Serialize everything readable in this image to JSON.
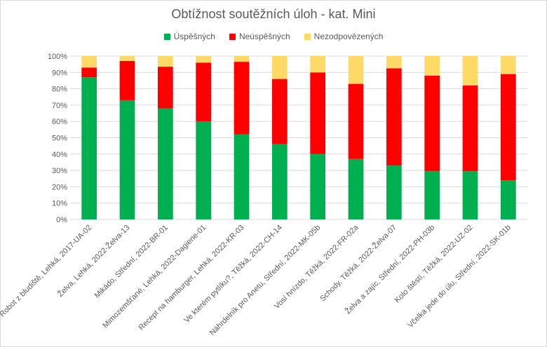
{
  "chart_data": {
    "type": "bar",
    "stacked": true,
    "title": "Obtížnost soutěžních úloh - kat. Mini",
    "categories": [
      "Robot z bludiště, Lehká, 2017-UA-02",
      "Želva, Lehká, 2022-Želva-13",
      "Mikádo, Střední, 2022-BR-01",
      "Mimozemšťané, Lehká, 2022-Dagiene-01",
      "Recept na hamburger, Lehká, 2022-KR-03",
      "Ve kterém pytlíku?, Těžká, 2022-CH-14",
      "Náhrdelník pro Anetu, Střední, 2022-MK-05b",
      "Vosí hnízdo, Těžká, 2022-FR-02a",
      "Schody, Těžká, 2022-Želva-07",
      "Želva a zajíc, Střední, 2022-PH-03b",
      "Kolo štěstí, Těžká, 2022-UZ-02",
      "Včelka jede do úlu, Střední, 2022-SK-01b"
    ],
    "series": [
      {
        "name": "Úspěšných",
        "color": "#00b050",
        "values": [
          87,
          73,
          68,
          60,
          52,
          46,
          40,
          37,
          33,
          29.5,
          29.5,
          24
        ]
      },
      {
        "name": "Neúspěšných",
        "color": "#ff0000",
        "values": [
          6,
          24,
          25.5,
          36,
          44.5,
          40,
          50,
          46,
          59.5,
          58.5,
          52.5,
          65
        ]
      },
      {
        "name": "Nezodpovězených",
        "color": "#ffd966",
        "values": [
          7,
          3,
          6.5,
          4,
          3.5,
          14,
          10,
          17,
          7.5,
          12,
          18,
          11
        ]
      }
    ],
    "yticks": [
      "0%",
      "10%",
      "20%",
      "30%",
      "40%",
      "50%",
      "60%",
      "70%",
      "80%",
      "90%",
      "100%"
    ],
    "ylim": [
      0,
      100
    ],
    "grid": true,
    "legend": "top-center"
  }
}
